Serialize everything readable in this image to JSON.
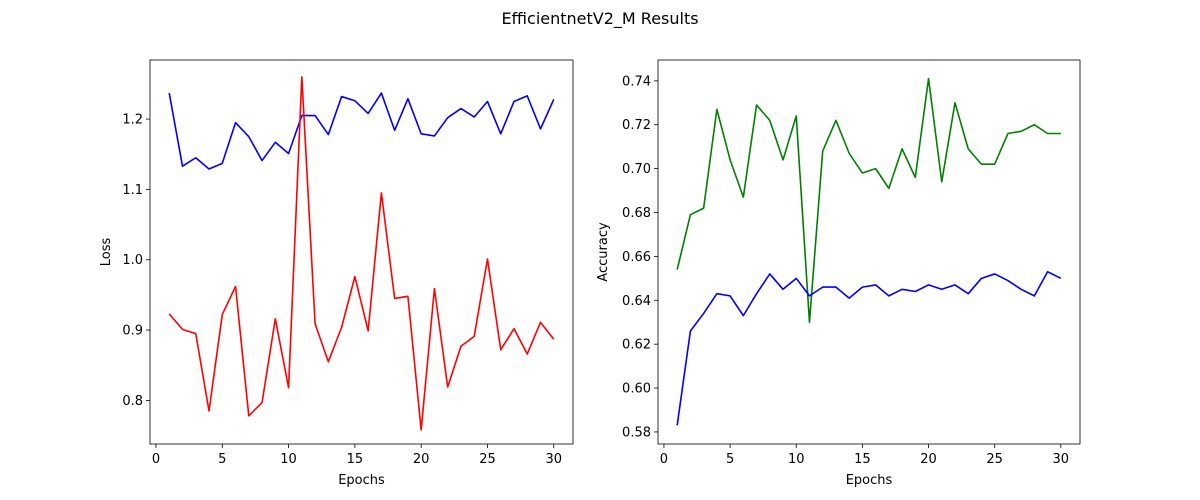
{
  "figure": {
    "title": "EfficientnetV2_M Results"
  },
  "chart_data": [
    {
      "type": "line",
      "title": "",
      "xlabel": "Epochs",
      "ylabel": "Loss",
      "xlim": [
        -0.45,
        31.45
      ],
      "ylim": [
        0.738,
        1.284
      ],
      "xticks": [
        0,
        5,
        10,
        15,
        20,
        25,
        30
      ],
      "yticks": [
        0.8,
        0.9,
        1.0,
        1.1,
        1.2
      ],
      "ytick_decimals": 1,
      "grid": false,
      "x": [
        1,
        2,
        3,
        4,
        5,
        6,
        7,
        8,
        9,
        10,
        11,
        12,
        13,
        14,
        15,
        16,
        17,
        18,
        19,
        20,
        21,
        22,
        23,
        24,
        25,
        26,
        27,
        28,
        29,
        30
      ],
      "series": [
        {
          "color": "#0000ff",
          "values": [
            1.237,
            1.133,
            1.145,
            1.129,
            1.137,
            1.195,
            1.175,
            1.141,
            1.167,
            1.151,
            1.205,
            1.205,
            1.178,
            1.232,
            1.226,
            1.208,
            1.237,
            1.184,
            1.229,
            1.179,
            1.176,
            1.202,
            1.215,
            1.203,
            1.225,
            1.179,
            1.225,
            1.233,
            1.186,
            1.228
          ]
        },
        {
          "color": "#ff0000",
          "values": [
            0.923,
            0.901,
            0.895,
            0.785,
            0.922,
            0.962,
            0.778,
            0.797,
            0.916,
            0.818,
            1.26,
            0.909,
            0.855,
            0.904,
            0.976,
            0.899,
            1.095,
            0.945,
            0.948,
            0.758,
            0.959,
            0.819,
            0.877,
            0.891,
            1.001,
            0.872,
            0.902,
            0.866,
            0.911,
            0.887
          ]
        }
      ]
    },
    {
      "type": "line",
      "title": "",
      "xlabel": "Epochs",
      "ylabel": "Accuracy",
      "xlim": [
        -0.45,
        31.45
      ],
      "ylim": [
        0.5745,
        0.7495
      ],
      "xticks": [
        0,
        5,
        10,
        15,
        20,
        25,
        30
      ],
      "yticks": [
        0.58,
        0.6,
        0.62,
        0.64,
        0.66,
        0.68,
        0.7,
        0.72,
        0.74
      ],
      "ytick_decimals": 2,
      "grid": false,
      "x": [
        1,
        2,
        3,
        4,
        5,
        6,
        7,
        8,
        9,
        10,
        11,
        12,
        13,
        14,
        15,
        16,
        17,
        18,
        19,
        20,
        21,
        22,
        23,
        24,
        25,
        26,
        27,
        28,
        29,
        30
      ],
      "series": [
        {
          "color": "#008000",
          "values": [
            0.654,
            0.679,
            0.682,
            0.727,
            0.704,
            0.687,
            0.729,
            0.722,
            0.704,
            0.724,
            0.63,
            0.708,
            0.722,
            0.707,
            0.698,
            0.7,
            0.691,
            0.709,
            0.696,
            0.741,
            0.694,
            0.73,
            0.709,
            0.702,
            0.702,
            0.716,
            0.717,
            0.72,
            0.716,
            0.716
          ]
        },
        {
          "color": "#0000ff",
          "values": [
            0.583,
            0.626,
            0.634,
            0.643,
            0.642,
            0.633,
            0.643,
            0.652,
            0.645,
            0.65,
            0.642,
            0.646,
            0.646,
            0.641,
            0.646,
            0.647,
            0.642,
            0.645,
            0.644,
            0.647,
            0.645,
            0.647,
            0.643,
            0.65,
            0.652,
            0.649,
            0.645,
            0.642,
            0.653,
            0.65
          ]
        }
      ]
    }
  ]
}
